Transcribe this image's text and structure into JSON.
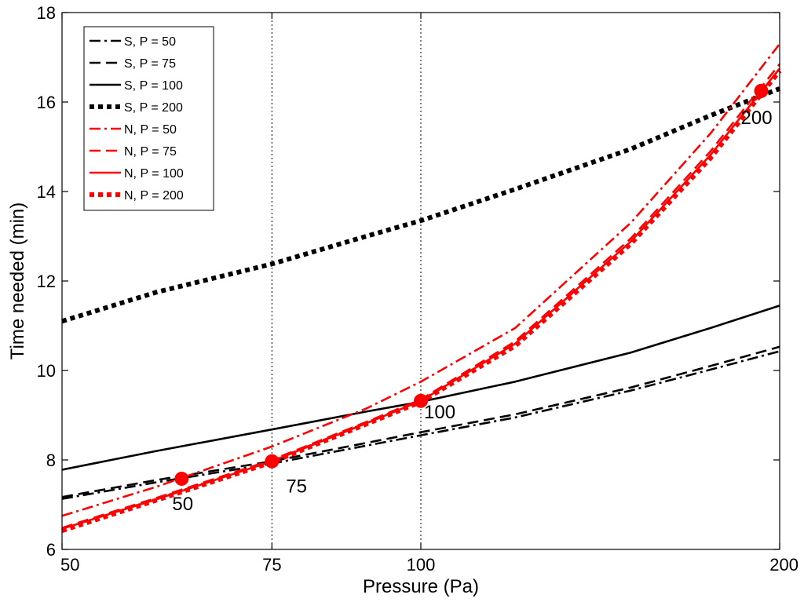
{
  "chart_data": {
    "type": "line",
    "title": "",
    "xlabel": "Pressure (Pa)",
    "ylabel": "Time needed (min)",
    "xscale": "log",
    "xlim": [
      50,
      200
    ],
    "ylim": [
      6,
      18
    ],
    "xticks": [
      50,
      75,
      100,
      200
    ],
    "xtick_labels": [
      "50",
      "75",
      "100",
      "200"
    ],
    "yticks": [
      6,
      8,
      10,
      12,
      14,
      16,
      18
    ],
    "ytick_labels": [
      "6",
      "8",
      "10",
      "12",
      "14",
      "16",
      "18"
    ],
    "vlines": [
      75,
      100
    ],
    "legend_position": "top-left",
    "series": [
      {
        "name": "S, P = 50",
        "color": "#000000",
        "style": "dashdot",
        "x": [
          50,
          60,
          75,
          90,
          100,
          120,
          150,
          175,
          200
        ],
        "y": [
          7.13,
          7.5,
          7.92,
          8.32,
          8.55,
          8.95,
          9.55,
          10.02,
          10.43
        ]
      },
      {
        "name": "S, P = 75",
        "color": "#000000",
        "style": "dashed",
        "x": [
          50,
          60,
          75,
          90,
          100,
          120,
          150,
          175,
          200
        ],
        "y": [
          7.17,
          7.55,
          7.97,
          8.38,
          8.62,
          9.02,
          9.62,
          10.1,
          10.53
        ]
      },
      {
        "name": "S, P = 100",
        "color": "#000000",
        "style": "solid",
        "x": [
          50,
          60,
          75,
          90,
          100,
          120,
          150,
          175,
          200
        ],
        "y": [
          7.78,
          8.2,
          8.68,
          9.08,
          9.3,
          9.75,
          10.4,
          10.95,
          11.45
        ]
      },
      {
        "name": "S, P = 200",
        "color": "#000000",
        "style": "dotted",
        "x": [
          50,
          60,
          75,
          90,
          100,
          120,
          150,
          175,
          200
        ],
        "y": [
          11.1,
          11.75,
          12.38,
          13.0,
          13.35,
          14.05,
          14.95,
          15.7,
          16.3
        ]
      },
      {
        "name": "N, P = 50",
        "color": "#ff0000",
        "style": "dashdot",
        "x": [
          50,
          60,
          75,
          90,
          100,
          120,
          150,
          175,
          200
        ],
        "y": [
          6.75,
          7.4,
          8.3,
          9.15,
          9.75,
          10.95,
          13.3,
          15.3,
          17.3
        ]
      },
      {
        "name": "N, P = 75",
        "color": "#ff0000",
        "style": "dashed",
        "x": [
          50,
          60,
          75,
          90,
          100,
          120,
          150,
          175,
          200
        ],
        "y": [
          6.48,
          7.15,
          8.0,
          8.85,
          9.35,
          10.65,
          12.95,
          14.9,
          16.85
        ]
      },
      {
        "name": "N, P = 100",
        "color": "#ff0000",
        "style": "solid",
        "x": [
          50,
          60,
          75,
          90,
          100,
          120,
          150,
          175,
          200
        ],
        "y": [
          6.46,
          7.12,
          7.97,
          8.82,
          9.32,
          10.6,
          12.88,
          14.82,
          16.75
        ]
      },
      {
        "name": "N, P = 200",
        "color": "#ff0000",
        "style": "dotted",
        "x": [
          50,
          60,
          75,
          90,
          100,
          120,
          150,
          175,
          200
        ],
        "y": [
          6.42,
          7.1,
          7.95,
          8.8,
          9.3,
          10.55,
          12.83,
          14.75,
          16.7
        ]
      }
    ],
    "points": [
      {
        "label": "50",
        "x": 63,
        "y": 7.58
      },
      {
        "label": "75",
        "x": 75,
        "y": 7.97
      },
      {
        "label": "100",
        "x": 100,
        "y": 9.32
      },
      {
        "label": "200",
        "x": 193,
        "y": 16.25
      }
    ]
  }
}
